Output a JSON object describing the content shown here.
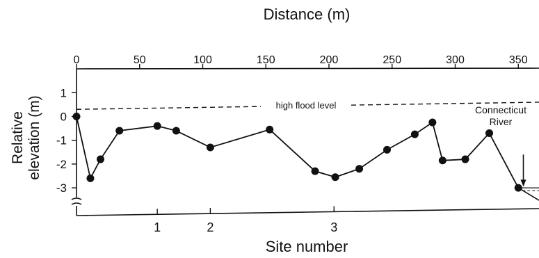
{
  "chart_data": {
    "type": "line",
    "title": "",
    "top_axis": {
      "label": "Distance (m)",
      "ticks": [
        0,
        50,
        100,
        150,
        200,
        250,
        300,
        350
      ],
      "tick_labels": [
        "0",
        "50",
        "100",
        "150",
        "200",
        "250",
        "300",
        "350"
      ],
      "xlim": [
        0,
        360
      ]
    },
    "bottom_axis": {
      "label": "Site number",
      "ticks": [
        {
          "label": "1",
          "x": 64
        },
        {
          "label": "2",
          "x": 106
        },
        {
          "label": "3",
          "x": 204
        }
      ]
    },
    "y_axis": {
      "label_lines": [
        "Relative",
        "elevation (m)"
      ],
      "ticks": [
        1,
        0,
        -1,
        -2,
        -3
      ],
      "tick_labels": [
        "1",
        "0",
        "-1",
        "-2",
        "-3"
      ],
      "ylim": [
        -3.8,
        1.8
      ],
      "axis_break": true
    },
    "series": [
      {
        "points": [
          {
            "x": 0,
            "y": 0.0
          },
          {
            "x": 11,
            "y": -2.6
          },
          {
            "x": 19,
            "y": -1.8
          },
          {
            "x": 34,
            "y": -0.6
          },
          {
            "x": 64,
            "y": -0.4
          },
          {
            "x": 79,
            "y": -0.6
          },
          {
            "x": 106,
            "y": -1.3
          },
          {
            "x": 153,
            "y": -0.55
          },
          {
            "x": 189,
            "y": -2.3
          },
          {
            "x": 205,
            "y": -2.55
          },
          {
            "x": 224,
            "y": -2.2
          },
          {
            "x": 246,
            "y": -1.4
          },
          {
            "x": 268,
            "y": -0.75
          },
          {
            "x": 282,
            "y": -0.25
          },
          {
            "x": 290,
            "y": -1.85
          },
          {
            "x": 308,
            "y": -1.8
          },
          {
            "x": 327,
            "y": -0.7
          },
          {
            "x": 350,
            "y": -3.0
          }
        ]
      }
    ],
    "reference_line": {
      "label": "high flood level",
      "y_start": 0.3,
      "y_end": 0.6
    },
    "annotations": [
      {
        "text_lines": [
          "Connecticut",
          "River"
        ],
        "arrow_x": 354,
        "arrow_y_from": -1.6,
        "arrow_y_to": -2.95
      }
    ],
    "grid": false
  }
}
